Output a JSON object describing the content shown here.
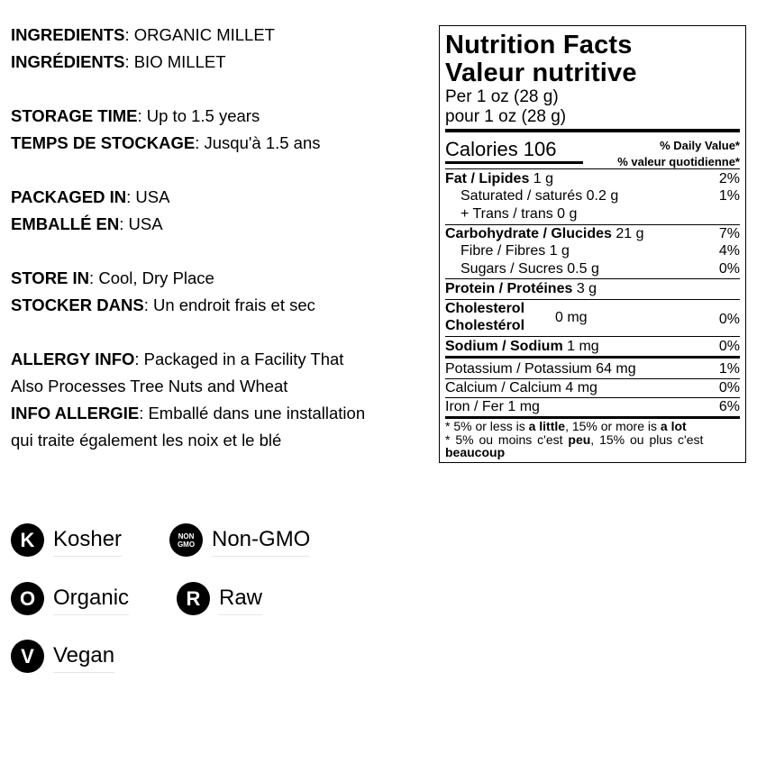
{
  "info": [
    {
      "label": "INGREDIENTS",
      "sep": ": ",
      "value": "ORGANIC MILLET"
    },
    {
      "label": "INGRÉDIENTS",
      "sep": ": ",
      "value": "BIO MILLET"
    },
    {
      "label": "STORAGE TIME",
      "sep": ": ",
      "value": "Up to 1.5 years"
    },
    {
      "label": "TEMPS DE STOCKAGE",
      "sep": ": ",
      "value": "Jusqu'à 1.5 ans"
    },
    {
      "label": "PACKAGED IN",
      "sep": ": ",
      "value": "USA"
    },
    {
      "label": "EMBALLÉ EN",
      "sep": ": ",
      "value": "USA"
    },
    {
      "label": "STORE IN",
      "sep": ": ",
      "value": "Cool, Dry Place"
    },
    {
      "label": "STOCKER DANS",
      "sep": ": ",
      "value": "Un endroit frais et sec"
    },
    {
      "label": "ALLERGY INFO",
      "sep": ": ",
      "value": "Packaged in a Facility That"
    },
    {
      "label": "",
      "sep": "",
      "value": "Also Processes Tree Nuts and Wheat"
    },
    {
      "label": "INFO ALLERGIE",
      "sep": ": ",
      "value": "Emballé dans une installation"
    },
    {
      "label": "",
      "sep": "",
      "value": "qui traite également les noix et le blé"
    }
  ],
  "nutrition": {
    "title_en": "Nutrition Facts",
    "title_fr": "Valeur nutritive",
    "serving_en": "Per 1 oz (28 g)",
    "serving_fr": "pour 1 oz (28 g)",
    "calories_label": "Calories 106",
    "dv_en": "% Daily Value*",
    "dv_fr": "% valeur quotidienne*",
    "rows": [
      {
        "name": "Fat / Lipides",
        "amount": " 1 g",
        "pct": "2%"
      },
      {
        "name": "Saturated / saturés 0.2 g",
        "amount": "",
        "pct": "1%"
      },
      {
        "name": "+ Trans / trans 0 g",
        "amount": "",
        "pct": ""
      },
      {
        "name": "Carbohydrate / Glucides",
        "amount": " 21 g",
        "pct": "7%"
      },
      {
        "name": "Fibre / Fibres 1 g",
        "amount": "",
        "pct": "4%"
      },
      {
        "name": "Sugars / Sucres 0.5 g",
        "amount": "",
        "pct": "0%"
      },
      {
        "name": "Protein / Protéines",
        "amount": " 3 g",
        "pct": ""
      },
      {
        "name": "Cholesterol",
        "name2": "Cholestérol",
        "amount": "0 mg",
        "pct": "0%"
      },
      {
        "name": "Sodium / Sodium",
        "amount": " 1 mg",
        "pct": "0%"
      },
      {
        "name": "Potassium / Potassium 64 mg",
        "amount": "",
        "pct": "1%"
      },
      {
        "name": "Calcium / Calcium 4 mg",
        "amount": "",
        "pct": "0%"
      },
      {
        "name": "Iron / Fer 1 mg",
        "amount": "",
        "pct": "6%"
      }
    ],
    "foot1": {
      "a": "* 5% or less is ",
      "b": "a little",
      "c": ", 15% or more is ",
      "d": "a lot"
    },
    "foot2": {
      "a": "* 5% ou moins c'est ",
      "b": "peu",
      "c": ", 15% ou plus c'est"
    },
    "foot3": "beaucoup"
  },
  "badges": [
    {
      "icon": "kosher-icon",
      "glyph": "K",
      "label": "Kosher"
    },
    {
      "icon": "non-gmo-icon",
      "glyph": "NON GMO",
      "label": "Non-GMO"
    },
    {
      "icon": "organic-icon",
      "glyph": "O",
      "label": "Organic"
    },
    {
      "icon": "raw-icon",
      "glyph": "R",
      "label": "Raw"
    },
    {
      "icon": "vegan-icon",
      "glyph": "V",
      "label": "Vegan"
    }
  ]
}
